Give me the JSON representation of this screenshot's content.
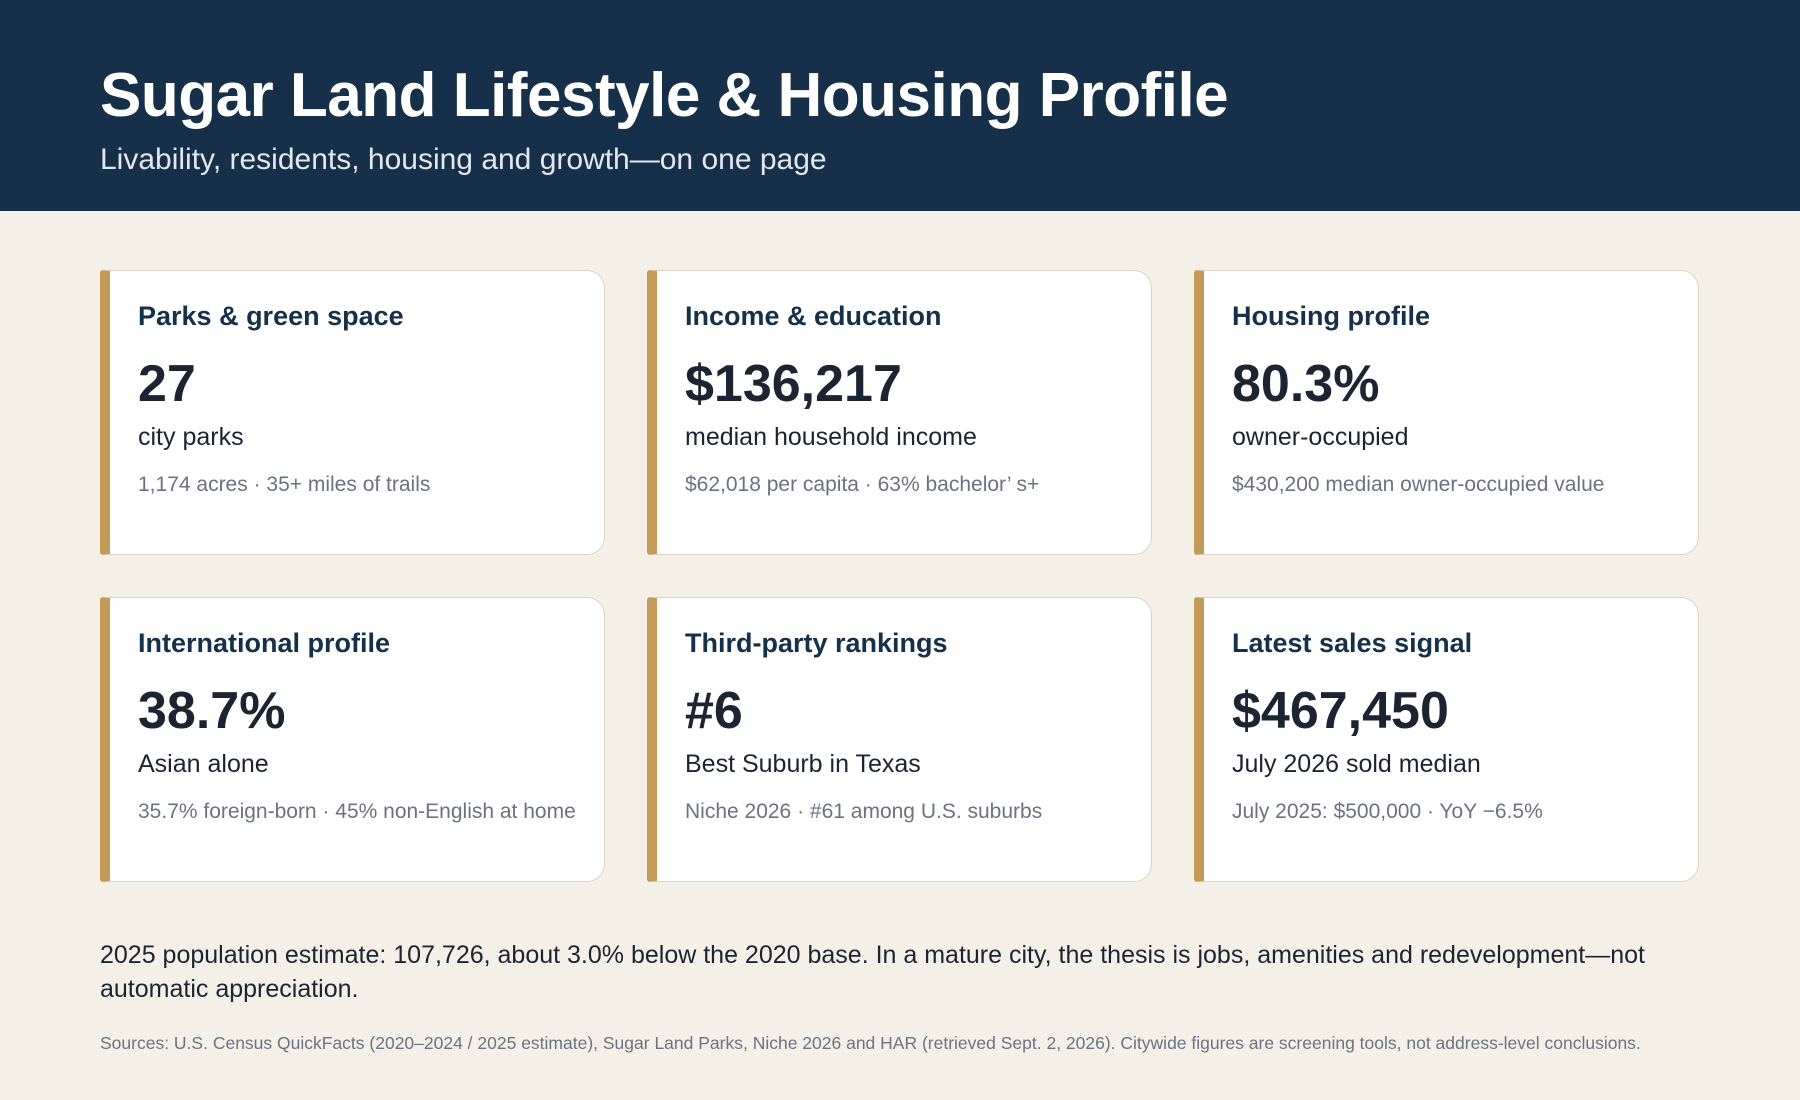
{
  "header": {
    "title": "Sugar Land Lifestyle & Housing Profile",
    "subtitle": "Livability, residents, housing and growth—on one page"
  },
  "cards": [
    {
      "title": "Parks & green space",
      "value": "27",
      "label": "city parks",
      "note": "1,174 acres · 35+ miles of trails"
    },
    {
      "title": "Income & education",
      "value": "$136,217",
      "label": "median household income",
      "note": "$62,018 per capita · 63% bachelor’ s+"
    },
    {
      "title": "Housing profile",
      "value": "80.3%",
      "label": "owner-occupied",
      "note": "$430,200 median owner-occupied value"
    },
    {
      "title": "International profile",
      "value": "38.7%",
      "label": "Asian alone",
      "note": "35.7% foreign-born · 45% non-English at home"
    },
    {
      "title": "Third-party rankings",
      "value": "#6",
      "label": "Best Suburb in Texas",
      "note": "Niche 2026 · #61 among U.S. suburbs"
    },
    {
      "title": "Latest sales signal",
      "value": "$467,450",
      "label": "July 2026 sold median",
      "note": "July 2025: $500,000 · YoY −6.5%"
    }
  ],
  "summary": "2025 population estimate: 107,726, about 3.0% below the 2020 base. In a mature city, the thesis is jobs, amenities and redevelopment—not automatic appreciation.",
  "sources": "Sources: U.S. Census QuickFacts (2020–2024 / 2025 estimate), Sugar Land Parks, Niche 2026 and HAR (retrieved Sept. 2, 2026). Citywide figures are screening tools, not address-level conclusions.",
  "colors": {
    "header_bg": "#16304a",
    "accent": "#c49a58",
    "page_bg": "#f4f0e8"
  }
}
